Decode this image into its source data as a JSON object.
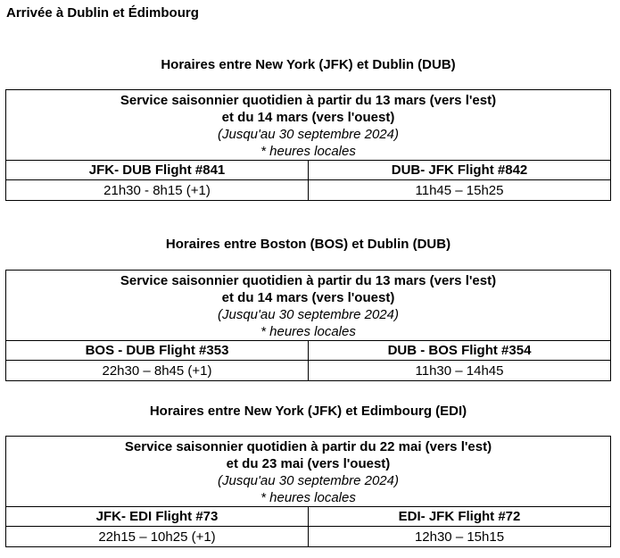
{
  "page": {
    "title": "Arrivée à Dublin et Édimbourg"
  },
  "sections": [
    {
      "heading": "Horaires entre New York (JFK) et Dublin (DUB)",
      "service_line1": "Service saisonnier quotidien à partir du 13 mars (vers l'est)",
      "service_line2": "et du 14 mars (vers l'ouest)",
      "validity": "(Jusqu'au 30 septembre 2024)",
      "note": "* heures locales",
      "flights": [
        {
          "label": "JFK- DUB Flight #841",
          "times": "21h30 - 8h15 (+1)"
        },
        {
          "label": "DUB- JFK Flight #842",
          "times": "11h45 – 15h25"
        }
      ]
    },
    {
      "heading": "Horaires entre Boston (BOS) et Dublin (DUB)",
      "service_line1": "Service saisonnier quotidien à partir du 13 mars (vers l'est)",
      "service_line2": "et du 14 mars (vers l'ouest)",
      "validity": "(Jusqu'au 30 septembre 2024)",
      "note": "* heures locales",
      "flights": [
        {
          "label": "BOS - DUB Flight #353",
          "times": "22h30 – 8h45 (+1)"
        },
        {
          "label": "DUB - BOS Flight #354",
          "times": "11h30 – 14h45"
        }
      ]
    },
    {
      "heading": "Horaires entre New York (JFK) et Edimbourg (EDI)",
      "service_line1": "Service saisonnier quotidien à partir du 22 mai (vers l'est)",
      "service_line2": "et du 23 mai (vers l'ouest)",
      "validity": "(Jusqu'au 30 septembre 2024)",
      "note": "* heures locales",
      "flights": [
        {
          "label": "JFK- EDI Flight #73",
          "times": "22h15 – 10h25 (+1)"
        },
        {
          "label": "EDI- JFK Flight #72",
          "times": "12h30 – 15h15"
        }
      ]
    }
  ]
}
